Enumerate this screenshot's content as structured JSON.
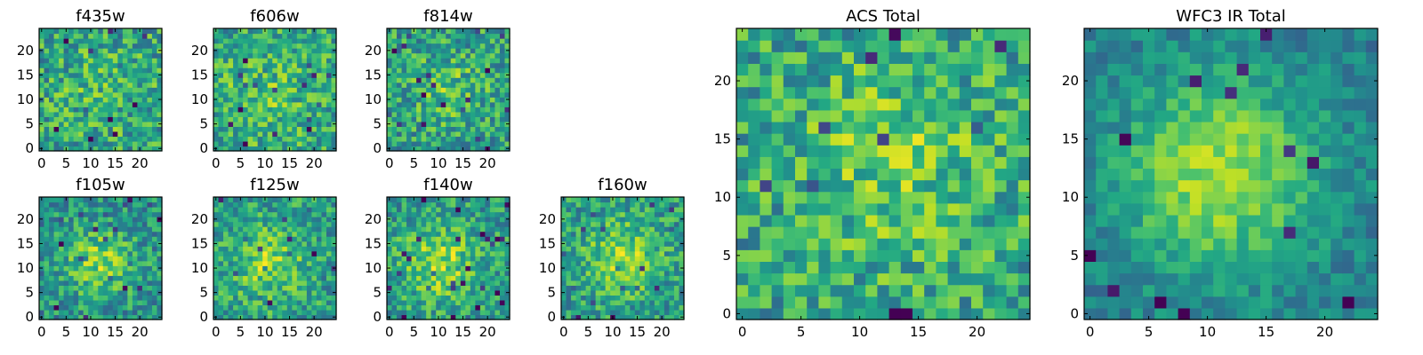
{
  "figure": {
    "colormap": "viridis",
    "colors": {
      "low": "#440154",
      "mid": "#21918c",
      "high": "#fde725",
      "axes": "#000000",
      "background": "#ffffff"
    }
  },
  "chart_data": [
    {
      "type": "heatmap",
      "title": "f435w",
      "grid": false,
      "size": 25,
      "xticks": [
        "0",
        "5",
        "10",
        "15",
        "20"
      ],
      "yticks": [
        "0",
        "5",
        "10",
        "15",
        "20"
      ],
      "xlim": [
        -0.5,
        24.5
      ],
      "ylim": [
        -0.5,
        24.5
      ],
      "seed": 11,
      "mean": 0.58,
      "noise": 0.26,
      "blob": {
        "cx": 12,
        "cy": 12,
        "sigma": 6,
        "amp": 0.08
      }
    },
    {
      "type": "heatmap",
      "title": "f606w",
      "grid": false,
      "size": 25,
      "xticks": [
        "0",
        "5",
        "10",
        "15",
        "20"
      ],
      "yticks": [
        "0",
        "5",
        "10",
        "15",
        "20"
      ],
      "xlim": [
        -0.5,
        24.5
      ],
      "ylim": [
        -0.5,
        24.5
      ],
      "seed": 23,
      "mean": 0.6,
      "noise": 0.24,
      "blob": {
        "cx": 10,
        "cy": 11,
        "sigma": 6,
        "amp": 0.12
      }
    },
    {
      "type": "heatmap",
      "title": "f814w",
      "grid": false,
      "size": 25,
      "xticks": [
        "0",
        "5",
        "10",
        "15",
        "20"
      ],
      "yticks": [
        "0",
        "5",
        "10",
        "15",
        "20"
      ],
      "xlim": [
        -0.5,
        24.5
      ],
      "ylim": [
        -0.5,
        24.5
      ],
      "seed": 37,
      "mean": 0.56,
      "noise": 0.25,
      "blob": {
        "cx": 12,
        "cy": 12,
        "sigma": 5,
        "amp": 0.15
      }
    },
    {
      "type": "heatmap",
      "title": "f105w",
      "grid": false,
      "size": 25,
      "xticks": [
        "0",
        "5",
        "10",
        "15",
        "20"
      ],
      "yticks": [
        "0",
        "5",
        "10",
        "15",
        "20"
      ],
      "xlim": [
        -0.5,
        24.5
      ],
      "ylim": [
        -0.5,
        24.5
      ],
      "seed": 41,
      "mean": 0.5,
      "noise": 0.22,
      "blob": {
        "cx": 12,
        "cy": 11,
        "sigma": 5,
        "amp": 0.3
      }
    },
    {
      "type": "heatmap",
      "title": "f125w",
      "grid": false,
      "size": 25,
      "xticks": [
        "0",
        "5",
        "10",
        "15",
        "20"
      ],
      "yticks": [
        "0",
        "5",
        "10",
        "15",
        "20"
      ],
      "xlim": [
        -0.5,
        24.5
      ],
      "ylim": [
        -0.5,
        24.5
      ],
      "seed": 53,
      "mean": 0.56,
      "noise": 0.22,
      "blob": {
        "cx": 11,
        "cy": 11,
        "sigma": 5,
        "amp": 0.25
      }
    },
    {
      "type": "heatmap",
      "title": "f140w",
      "grid": false,
      "size": 25,
      "xticks": [
        "0",
        "5",
        "10",
        "15",
        "20"
      ],
      "yticks": [
        "0",
        "5",
        "10",
        "15",
        "20"
      ],
      "xlim": [
        -0.5,
        24.5
      ],
      "ylim": [
        -0.5,
        24.5
      ],
      "seed": 67,
      "mean": 0.55,
      "noise": 0.22,
      "blob": {
        "cx": 10,
        "cy": 11,
        "sigma": 5,
        "amp": 0.3
      }
    },
    {
      "type": "heatmap",
      "title": "f160w",
      "grid": false,
      "size": 25,
      "xticks": [
        "0",
        "5",
        "10",
        "15",
        "20"
      ],
      "yticks": [
        "0",
        "5",
        "10",
        "15",
        "20"
      ],
      "xlim": [
        -0.5,
        24.5
      ],
      "ylim": [
        -0.5,
        24.5
      ],
      "seed": 79,
      "mean": 0.55,
      "noise": 0.22,
      "blob": {
        "cx": 12,
        "cy": 12,
        "sigma": 5,
        "amp": 0.3
      }
    },
    {
      "type": "heatmap",
      "title": "ACS Total",
      "grid": false,
      "size": 25,
      "xticks": [
        "0",
        "5",
        "10",
        "15",
        "20"
      ],
      "yticks": [
        "0",
        "5",
        "10",
        "15",
        "20"
      ],
      "xlim": [
        -0.5,
        24.5
      ],
      "ylim": [
        -0.5,
        24.5
      ],
      "seed": 97,
      "mean": 0.58,
      "noise": 0.24,
      "blob": {
        "cx": 13,
        "cy": 13,
        "sigma": 6,
        "amp": 0.18
      }
    },
    {
      "type": "heatmap",
      "title": "WFC3 IR Total",
      "grid": false,
      "size": 25,
      "xticks": [
        "0",
        "5",
        "10",
        "15",
        "20"
      ],
      "yticks": [
        "0",
        "5",
        "10",
        "15",
        "20"
      ],
      "xlim": [
        -0.5,
        24.5
      ],
      "ylim": [
        -0.5,
        24.5
      ],
      "seed": 113,
      "mean": 0.42,
      "noise": 0.13,
      "blob": {
        "cx": 11,
        "cy": 12,
        "sigma": 6,
        "amp": 0.45
      }
    }
  ]
}
